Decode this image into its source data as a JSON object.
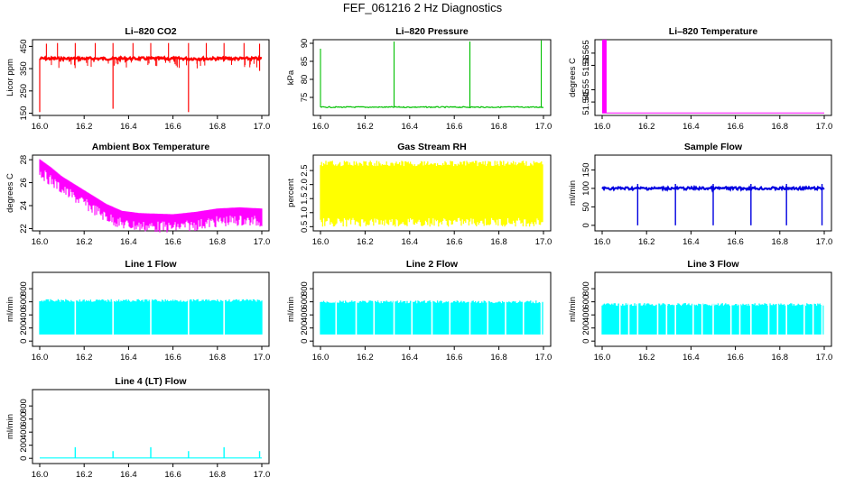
{
  "title": "FEF_061216  2 Hz Diagnostics",
  "chart_data": [
    {
      "id": "co2",
      "type": "line",
      "title": "Li–820 CO2",
      "ylabel": "Licor ppm",
      "color": "#ff0000",
      "x_range": [
        16.0,
        17.0
      ],
      "ylim": [
        140,
        480
      ],
      "x_ticks": [
        {
          "v": 16.0,
          "label": "16.0"
        },
        {
          "v": 16.2,
          "label": "16.2"
        },
        {
          "v": 16.4,
          "label": "16.4"
        },
        {
          "v": 16.6,
          "label": "16.6"
        },
        {
          "v": 16.8,
          "label": "16.8"
        },
        {
          "v": 17.0,
          "label": "17.0"
        }
      ],
      "y_ticks": [
        {
          "v": 150,
          "label": "150"
        },
        {
          "v": 250,
          "label": "250"
        },
        {
          "v": 350,
          "label": "350"
        },
        {
          "v": 450,
          "label": "450"
        }
      ],
      "baseline": 395,
      "band": [
        370,
        410
      ],
      "spikes_up": [
        {
          "x": 16.03,
          "y": 462
        },
        {
          "x": 16.08,
          "y": 465
        },
        {
          "x": 16.16,
          "y": 465
        },
        {
          "x": 16.25,
          "y": 465
        },
        {
          "x": 16.33,
          "y": 465
        },
        {
          "x": 16.42,
          "y": 465
        },
        {
          "x": 16.5,
          "y": 465
        },
        {
          "x": 16.58,
          "y": 465
        },
        {
          "x": 16.67,
          "y": 465
        },
        {
          "x": 16.75,
          "y": 465
        },
        {
          "x": 16.83,
          "y": 465
        },
        {
          "x": 16.92,
          "y": 465
        },
        {
          "x": 16.99,
          "y": 462
        }
      ],
      "spikes_down": [
        {
          "x": 16.0,
          "y": 155
        },
        {
          "x": 16.33,
          "y": 170
        },
        {
          "x": 16.67,
          "y": 155
        },
        {
          "x": 16.99,
          "y": 340
        }
      ]
    },
    {
      "id": "pressure",
      "type": "line",
      "title": "Li–820 Pressure",
      "ylabel": "kPa",
      "color": "#00c000",
      "x_range": [
        16.0,
        17.0
      ],
      "ylim": [
        70,
        91
      ],
      "x_ticks": [
        {
          "v": 16.0,
          "label": "16.0"
        },
        {
          "v": 16.2,
          "label": "16.2"
        },
        {
          "v": 16.4,
          "label": "16.4"
        },
        {
          "v": 16.6,
          "label": "16.6"
        },
        {
          "v": 16.8,
          "label": "16.8"
        },
        {
          "v": 17.0,
          "label": "17.0"
        }
      ],
      "y_ticks": [
        {
          "v": 75,
          "label": "75"
        },
        {
          "v": 80,
          "label": "80"
        },
        {
          "v": 85,
          "label": "85"
        },
        {
          "v": 90,
          "label": "90"
        }
      ],
      "baseline": 72.3,
      "spikes_up": [
        {
          "x": 16.0,
          "y": 88.5
        },
        {
          "x": 16.33,
          "y": 90.5
        },
        {
          "x": 16.67,
          "y": 90.5
        },
        {
          "x": 16.67,
          "y": 90.5
        },
        {
          "x": 16.99,
          "y": 90.8
        }
      ]
    },
    {
      "id": "temp",
      "type": "line",
      "title": "Li–820 Temperature",
      "ylabel": "degrees C",
      "color": "#ff00ff",
      "x_range": [
        16.0,
        17.0
      ],
      "ylim": [
        51.5395,
        51.5705
      ],
      "x_ticks": [
        {
          "v": 16.0,
          "label": "16.0"
        },
        {
          "v": 16.2,
          "label": "16.2"
        },
        {
          "v": 16.4,
          "label": "16.4"
        },
        {
          "v": 16.6,
          "label": "16.6"
        },
        {
          "v": 16.8,
          "label": "16.8"
        },
        {
          "v": 17.0,
          "label": "17.0"
        }
      ],
      "y_ticks": [
        {
          "v": 51.545,
          "label": "51.545"
        },
        {
          "v": 51.55,
          "label": "51.55"
        },
        {
          "v": 51.56,
          "label": "51.56"
        },
        {
          "v": 51.565,
          "label": "51.565"
        }
      ],
      "baseline": 51.5405,
      "block": [
        16.0,
        16.02,
        51.5705
      ]
    },
    {
      "id": "ambient",
      "type": "line",
      "title": "Ambient Box Temperature",
      "ylabel": "degrees C",
      "color": "#ff00ff",
      "x_range": [
        16.0,
        17.0
      ],
      "ylim": [
        21.8,
        28.4
      ],
      "x_ticks": [
        {
          "v": 16.0,
          "label": "16.0"
        },
        {
          "v": 16.2,
          "label": "16.2"
        },
        {
          "v": 16.4,
          "label": "16.4"
        },
        {
          "v": 16.6,
          "label": "16.6"
        },
        {
          "v": 16.8,
          "label": "16.8"
        },
        {
          "v": 17.0,
          "label": "17.0"
        }
      ],
      "y_ticks": [
        {
          "v": 22,
          "label": "22"
        },
        {
          "v": 24,
          "label": "24"
        },
        {
          "v": 26,
          "label": "26"
        },
        {
          "v": 28,
          "label": "28"
        }
      ],
      "trend": [
        {
          "x": 16.0,
          "y": 27.7
        },
        {
          "x": 16.05,
          "y": 27.0
        },
        {
          "x": 16.1,
          "y": 26.2
        },
        {
          "x": 16.2,
          "y": 25.0
        },
        {
          "x": 16.3,
          "y": 23.8
        },
        {
          "x": 16.37,
          "y": 23.2
        },
        {
          "x": 16.45,
          "y": 23.0
        },
        {
          "x": 16.6,
          "y": 22.9
        },
        {
          "x": 16.7,
          "y": 23.1
        },
        {
          "x": 16.8,
          "y": 23.4
        },
        {
          "x": 16.9,
          "y": 23.5
        },
        {
          "x": 17.0,
          "y": 23.4
        }
      ],
      "noise_down": 1.0
    },
    {
      "id": "rh",
      "type": "line",
      "title": "Gas Stream RH",
      "ylabel": "percent",
      "color": "#ffff00",
      "x_range": [
        16.0,
        17.0
      ],
      "ylim": [
        0.35,
        3.05
      ],
      "x_ticks": [
        {
          "v": 16.0,
          "label": "16.0"
        },
        {
          "v": 16.2,
          "label": "16.2"
        },
        {
          "v": 16.4,
          "label": "16.4"
        },
        {
          "v": 16.6,
          "label": "16.6"
        },
        {
          "v": 16.8,
          "label": "16.8"
        },
        {
          "v": 17.0,
          "label": "17.0"
        }
      ],
      "y_ticks": [
        {
          "v": 0.5,
          "label": "0.5"
        },
        {
          "v": 1.0,
          "label": "1.0"
        },
        {
          "v": 1.5,
          "label": "1.5"
        },
        {
          "v": 2.0,
          "label": "2.0"
        },
        {
          "v": 2.5,
          "label": "2.5"
        }
      ],
      "band": [
        0.5,
        2.85
      ]
    },
    {
      "id": "sample",
      "type": "line",
      "title": "Sample Flow",
      "ylabel": "ml/min",
      "color": "#0000e0",
      "x_range": [
        16.0,
        17.0
      ],
      "ylim": [
        -15,
        190
      ],
      "x_ticks": [
        {
          "v": 16.0,
          "label": "16.0"
        },
        {
          "v": 16.2,
          "label": "16.2"
        },
        {
          "v": 16.4,
          "label": "16.4"
        },
        {
          "v": 16.6,
          "label": "16.6"
        },
        {
          "v": 16.8,
          "label": "16.8"
        },
        {
          "v": 17.0,
          "label": "17.0"
        }
      ],
      "y_ticks": [
        {
          "v": 0,
          "label": "0"
        },
        {
          "v": 50,
          "label": "50"
        },
        {
          "v": 100,
          "label": "100"
        },
        {
          "v": 150,
          "label": "150"
        }
      ],
      "baseline": 100,
      "band": [
        95,
        106
      ],
      "dips": [
        16.16,
        16.33,
        16.5,
        16.67,
        16.83,
        16.99
      ],
      "dip_low": 0,
      "dip_peak": 112
    },
    {
      "id": "line1",
      "type": "line",
      "title": "Line 1 Flow",
      "ylabel": "ml/min",
      "color": "#00ffff",
      "x_range": [
        16.0,
        17.0
      ],
      "ylim": [
        -80,
        1050
      ],
      "x_ticks": [
        {
          "v": 16.0,
          "label": "16.0"
        },
        {
          "v": 16.2,
          "label": "16.2"
        },
        {
          "v": 16.4,
          "label": "16.4"
        },
        {
          "v": 16.6,
          "label": "16.6"
        },
        {
          "v": 16.8,
          "label": "16.8"
        },
        {
          "v": 17.0,
          "label": "17.0"
        }
      ],
      "y_ticks": [
        {
          "v": 0,
          "label": "0"
        },
        {
          "v": 200,
          "label": "200"
        },
        {
          "v": 400,
          "label": "400"
        },
        {
          "v": 600,
          "label": "600"
        },
        {
          "v": 800,
          "label": "800"
        }
      ],
      "band": [
        100,
        640
      ],
      "gaps": [
        16.16,
        16.33,
        16.5,
        16.67,
        16.83
      ]
    },
    {
      "id": "line2",
      "type": "line",
      "title": "Line 2 Flow",
      "ylabel": "ml/min",
      "color": "#00ffff",
      "x_range": [
        16.0,
        17.0
      ],
      "ylim": [
        -80,
        1050
      ],
      "x_ticks": [
        {
          "v": 16.0,
          "label": "16.0"
        },
        {
          "v": 16.2,
          "label": "16.2"
        },
        {
          "v": 16.4,
          "label": "16.4"
        },
        {
          "v": 16.6,
          "label": "16.6"
        },
        {
          "v": 16.8,
          "label": "16.8"
        },
        {
          "v": 17.0,
          "label": "17.0"
        }
      ],
      "y_ticks": [
        {
          "v": 0,
          "label": "0"
        },
        {
          "v": 200,
          "label": "200"
        },
        {
          "v": 400,
          "label": "400"
        },
        {
          "v": 600,
          "label": "600"
        },
        {
          "v": 800,
          "label": "800"
        }
      ],
      "band": [
        100,
        620
      ],
      "gaps": [
        16.07,
        16.16,
        16.24,
        16.33,
        16.41,
        16.5,
        16.58,
        16.67,
        16.75,
        16.83,
        16.91,
        16.99
      ]
    },
    {
      "id": "line3",
      "type": "line",
      "title": "Line 3 Flow",
      "ylabel": "ml/min",
      "color": "#00ffff",
      "x_range": [
        16.0,
        17.0
      ],
      "ylim": [
        -80,
        1050
      ],
      "x_ticks": [
        {
          "v": 16.0,
          "label": "16.0"
        },
        {
          "v": 16.2,
          "label": "16.2"
        },
        {
          "v": 16.4,
          "label": "16.4"
        },
        {
          "v": 16.6,
          "label": "16.6"
        },
        {
          "v": 16.8,
          "label": "16.8"
        },
        {
          "v": 17.0,
          "label": "17.0"
        }
      ],
      "y_ticks": [
        {
          "v": 0,
          "label": "0"
        },
        {
          "v": 200,
          "label": "200"
        },
        {
          "v": 400,
          "label": "400"
        },
        {
          "v": 600,
          "label": "600"
        },
        {
          "v": 800,
          "label": "800"
        }
      ],
      "band": [
        100,
        580
      ],
      "gaps": [
        16.08,
        16.12,
        16.16,
        16.25,
        16.29,
        16.33,
        16.41,
        16.45,
        16.5,
        16.58,
        16.62,
        16.67,
        16.75,
        16.79,
        16.83,
        16.91,
        16.95,
        16.99
      ]
    },
    {
      "id": "line4",
      "type": "line",
      "title": "Line 4 (LT) Flow",
      "ylabel": "ml/min",
      "color": "#00ffff",
      "x_range": [
        16.0,
        17.0
      ],
      "ylim": [
        -80,
        1050
      ],
      "x_ticks": [
        {
          "v": 16.0,
          "label": "16.0"
        },
        {
          "v": 16.2,
          "label": "16.2"
        },
        {
          "v": 16.4,
          "label": "16.4"
        },
        {
          "v": 16.6,
          "label": "16.6"
        },
        {
          "v": 16.8,
          "label": "16.8"
        },
        {
          "v": 17.0,
          "label": "17.0"
        }
      ],
      "y_ticks": [
        {
          "v": 0,
          "label": "0"
        },
        {
          "v": 200,
          "label": "200"
        },
        {
          "v": 400,
          "label": "400"
        },
        {
          "v": 600,
          "label": "600"
        },
        {
          "v": 800,
          "label": "800"
        }
      ],
      "baseline": 5,
      "spikes_up": [
        {
          "x": 16.16,
          "y": 170
        },
        {
          "x": 16.33,
          "y": 110
        },
        {
          "x": 16.5,
          "y": 170
        },
        {
          "x": 16.67,
          "y": 110
        },
        {
          "x": 16.83,
          "y": 170
        },
        {
          "x": 16.99,
          "y": 110
        }
      ]
    }
  ]
}
